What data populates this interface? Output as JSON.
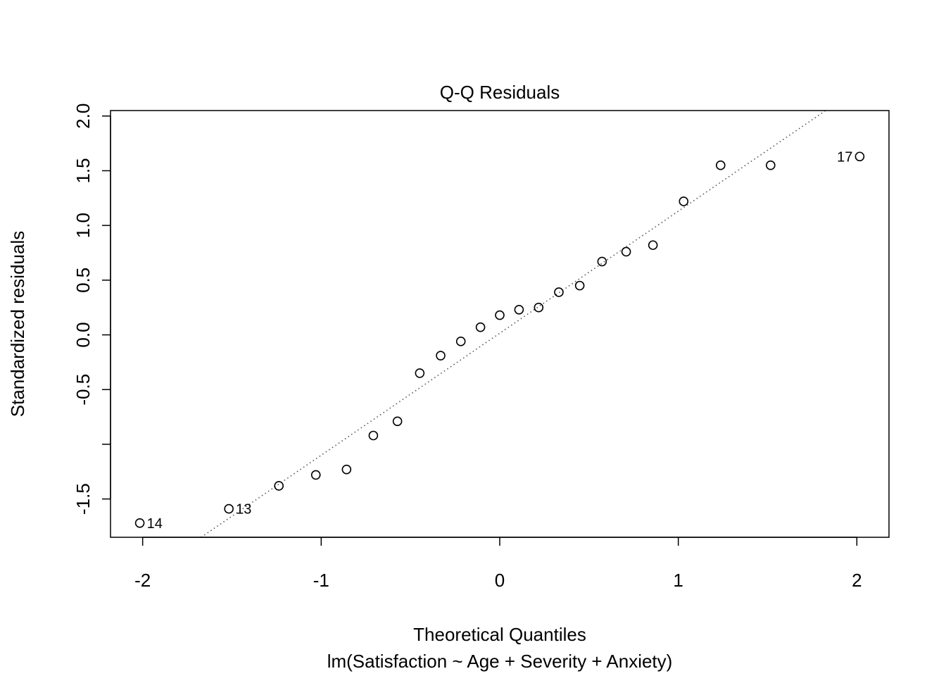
{
  "chart_data": {
    "type": "scatter",
    "title": "Q-Q Residuals",
    "xlabel": "Theoretical Quantiles",
    "sublabel": "lm(Satisfaction ~ Age + Severity + Anxiety)",
    "ylabel": "Standardized residuals",
    "xlim": [
      -2.18,
      2.18
    ],
    "ylim": [
      -1.85,
      2.05
    ],
    "x_ticks": [
      -2,
      -1,
      0,
      1,
      2
    ],
    "x_tick_labels": [
      "-2",
      "-1",
      "0",
      "1",
      "2"
    ],
    "y_ticks": [
      -1.5,
      -1.0,
      -0.5,
      0.0,
      0.5,
      1.0,
      1.5,
      2.0
    ],
    "y_tick_labels": [
      "-1.5",
      "",
      "-0.5",
      "0.0",
      "0.5",
      "1.0",
      "1.5",
      "2.0"
    ],
    "grid": false,
    "reference_line": {
      "style": "dotted",
      "color": "#555555",
      "intercept": 0.015,
      "slope": 1.115
    },
    "points": [
      {
        "x": -2.016,
        "y": -1.72,
        "label": "14"
      },
      {
        "x": -1.517,
        "y": -1.59,
        "label": "13"
      },
      {
        "x": -1.237,
        "y": -1.38,
        "label": ""
      },
      {
        "x": -1.03,
        "y": -1.28,
        "label": ""
      },
      {
        "x": -0.858,
        "y": -1.23,
        "label": ""
      },
      {
        "x": -0.708,
        "y": -0.92,
        "label": ""
      },
      {
        "x": -0.573,
        "y": -0.79,
        "label": ""
      },
      {
        "x": -0.448,
        "y": -0.35,
        "label": ""
      },
      {
        "x": -0.331,
        "y": -0.19,
        "label": ""
      },
      {
        "x": -0.218,
        "y": -0.06,
        "label": ""
      },
      {
        "x": -0.108,
        "y": 0.07,
        "label": ""
      },
      {
        "x": 0.0,
        "y": 0.18,
        "label": ""
      },
      {
        "x": 0.108,
        "y": 0.23,
        "label": ""
      },
      {
        "x": 0.218,
        "y": 0.25,
        "label": ""
      },
      {
        "x": 0.331,
        "y": 0.39,
        "label": ""
      },
      {
        "x": 0.448,
        "y": 0.45,
        "label": ""
      },
      {
        "x": 0.573,
        "y": 0.67,
        "label": ""
      },
      {
        "x": 0.708,
        "y": 0.76,
        "label": ""
      },
      {
        "x": 0.858,
        "y": 0.82,
        "label": ""
      },
      {
        "x": 1.03,
        "y": 1.22,
        "label": ""
      },
      {
        "x": 1.237,
        "y": 1.55,
        "label": ""
      },
      {
        "x": 1.517,
        "y": 1.55,
        "label": ""
      },
      {
        "x": 2.016,
        "y": 1.63,
        "label": "17"
      }
    ]
  }
}
